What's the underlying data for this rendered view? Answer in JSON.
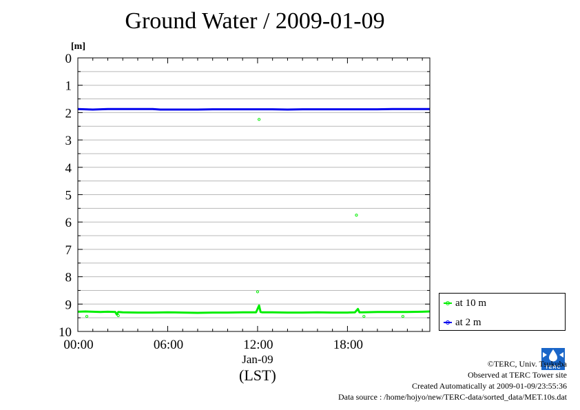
{
  "chart_data": {
    "type": "line",
    "title": "Ground Water / 2009-01-09",
    "ylabel": "[m]",
    "y_inverted": true,
    "ylim": [
      0,
      10
    ],
    "yticks": [
      "0",
      "1",
      "2",
      "3",
      "4",
      "5",
      "6",
      "7",
      "8",
      "9",
      "10"
    ],
    "xlim": [
      0,
      23.5
    ],
    "xticks": [
      {
        "x": 0,
        "label": "00:00"
      },
      {
        "x": 6,
        "label": "06:00"
      },
      {
        "x": 12,
        "label": "12:00"
      },
      {
        "x": 18,
        "label": "18:00"
      }
    ],
    "date_label": "Jan-09",
    "xlabel": "(LST)",
    "grid": true,
    "legend_position": "bottom-right, outside plot",
    "series": [
      {
        "name": "at 10 m",
        "color": "#00ee00",
        "x": [
          0,
          0.5,
          1,
          1.5,
          2,
          2.5,
          2.6,
          2.7,
          3,
          4,
          5,
          6,
          7,
          8,
          9,
          10,
          11,
          11.9,
          12.1,
          12.2,
          12.3,
          12.5,
          13,
          14,
          15,
          16,
          17,
          18,
          18.5,
          18.7,
          18.8,
          19,
          20,
          21,
          22,
          23,
          23.5
        ],
        "y": [
          9.28,
          9.27,
          9.28,
          9.29,
          9.28,
          9.29,
          9.38,
          9.29,
          9.3,
          9.31,
          9.31,
          9.3,
          9.31,
          9.32,
          9.31,
          9.31,
          9.3,
          9.3,
          9.05,
          9.29,
          9.3,
          9.3,
          9.3,
          9.31,
          9.31,
          9.3,
          9.31,
          9.31,
          9.3,
          9.18,
          9.3,
          9.3,
          9.29,
          9.29,
          9.29,
          9.28,
          9.27
        ],
        "outliers": [
          {
            "x": 12.1,
            "y": 2.25
          },
          {
            "x": 12.0,
            "y": 8.55
          },
          {
            "x": 18.6,
            "y": 5.75
          },
          {
            "x": 0.6,
            "y": 9.45
          },
          {
            "x": 2.7,
            "y": 9.42
          },
          {
            "x": 19.1,
            "y": 9.45
          },
          {
            "x": 21.7,
            "y": 9.45
          }
        ]
      },
      {
        "name": "at 2 m",
        "color": "#0000ee",
        "x": [
          0,
          0.5,
          1,
          2,
          3,
          4,
          5,
          5.5,
          6,
          7,
          8,
          9,
          10,
          11,
          12,
          13,
          14,
          15,
          16,
          17,
          18,
          19,
          20,
          21,
          22,
          23,
          23.5
        ],
        "y": [
          1.87,
          1.88,
          1.89,
          1.87,
          1.87,
          1.87,
          1.87,
          1.89,
          1.89,
          1.89,
          1.89,
          1.88,
          1.88,
          1.88,
          1.88,
          1.88,
          1.89,
          1.88,
          1.88,
          1.88,
          1.88,
          1.88,
          1.88,
          1.87,
          1.87,
          1.87,
          1.87
        ]
      }
    ]
  },
  "credits": {
    "copyright": "©TERC, Univ. Tsukuba",
    "observed": "Observed at TERC Tower site",
    "created": "Created Automatically at 2009-01-09/23:55:36",
    "source": "Data source : /home/hojyo/new/TERC-data/sorted_data/MET.10s.dat"
  },
  "logo_text": "TERC"
}
